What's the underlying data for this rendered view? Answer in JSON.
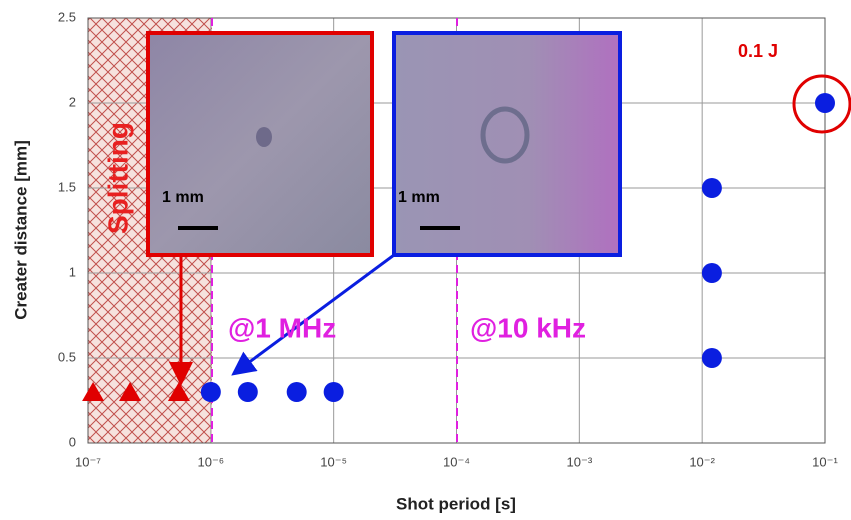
{
  "chart_data": {
    "type": "scatter",
    "x_label": "Shot period [s]",
    "y_label": "Creater distance [mm]",
    "xscale": "log",
    "xlim": [
      1e-07,
      0.1
    ],
    "ylim": [
      0,
      2.5
    ],
    "xticks": [
      {
        "value": 1e-07,
        "label": "10⁻⁷"
      },
      {
        "value": 1e-06,
        "label": "10⁻⁶"
      },
      {
        "value": 1e-05,
        "label": "10⁻⁵"
      },
      {
        "value": 0.0001,
        "label": "10⁻⁴"
      },
      {
        "value": 0.001,
        "label": "10⁻³"
      },
      {
        "value": 0.01,
        "label": "10⁻²"
      },
      {
        "value": 0.1,
        "label": "10⁻¹"
      }
    ],
    "yticks": [
      0,
      0.5,
      1,
      1.5,
      2,
      2.5
    ],
    "grid": true,
    "series": [
      {
        "color": "#e00000",
        "marker": "triangle",
        "x": [
          1.1e-07,
          2.2e-07,
          5.5e-07
        ],
        "values": [
          0.3,
          0.3,
          0.3
        ]
      },
      {
        "color": "#0a1ee0",
        "marker": "circle",
        "x": [
          1e-06,
          2e-06,
          5e-06,
          1e-05,
          0.012,
          0.012,
          0.012,
          0.1
        ],
        "values": [
          0.3,
          0.3,
          0.3,
          0.3,
          0.5,
          1,
          1.5,
          2
        ]
      }
    ],
    "annotations": {
      "splitting": "Splitting",
      "mhz": "@1 MHz",
      "khz": "@10 kHz",
      "energy": "0.1 J",
      "scale_left": "1 mm",
      "scale_right": "1 mm"
    }
  }
}
